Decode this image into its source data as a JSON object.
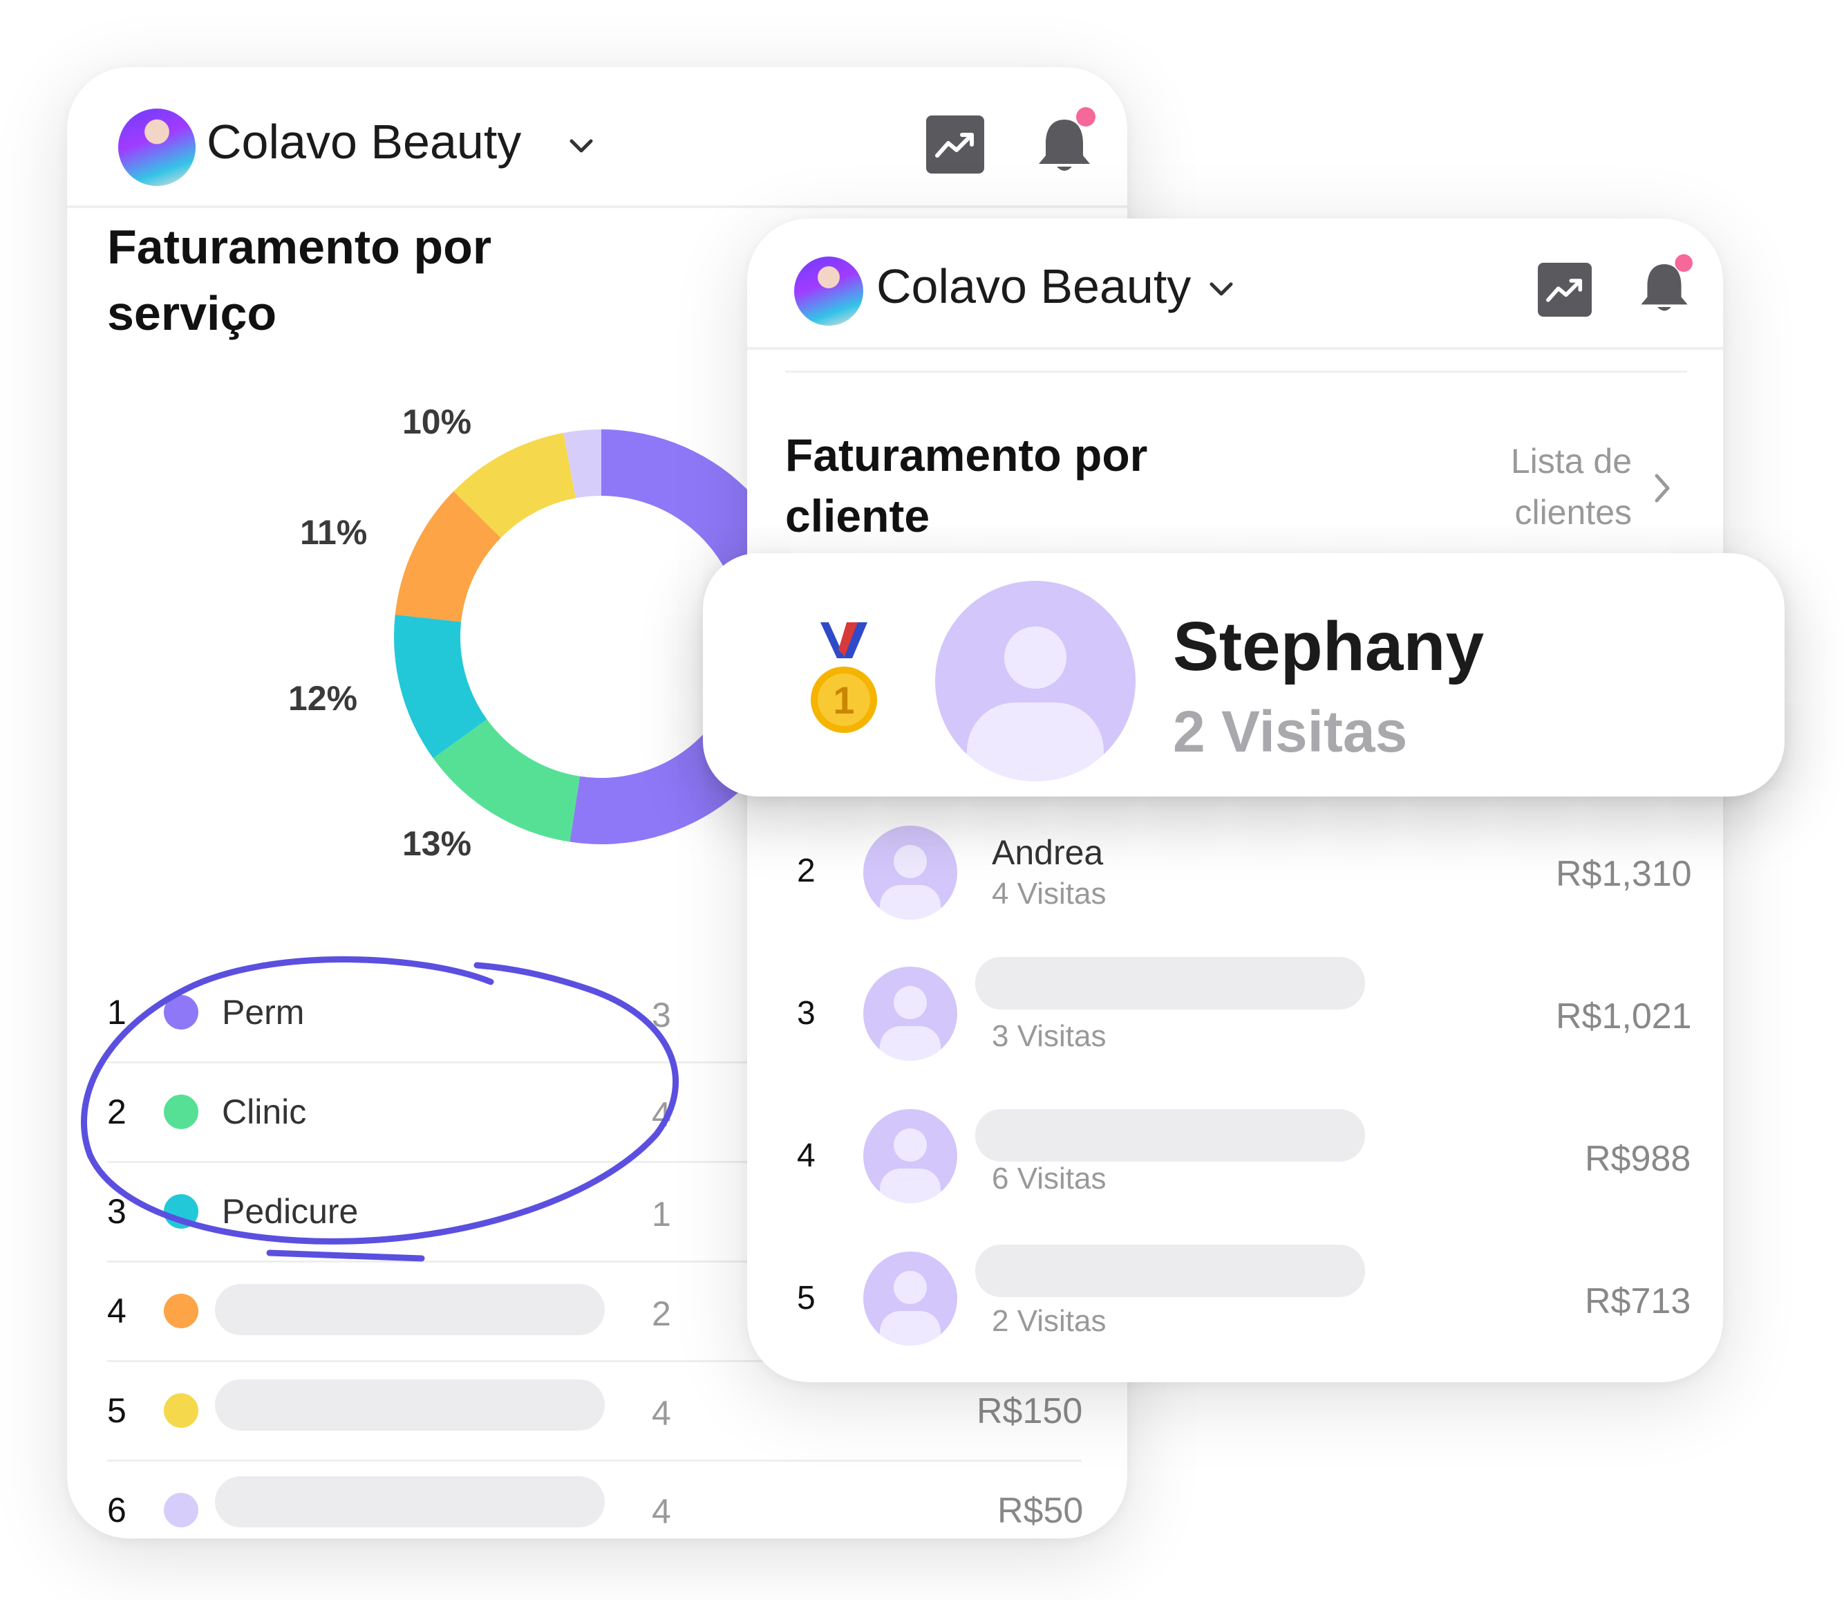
{
  "app": {
    "brand": "Colavo Beauty"
  },
  "left_card": {
    "title_line1": "Faturamento por",
    "title_line2": "serviço",
    "donut_labels": [
      "10%",
      "11%",
      "12%",
      "13%"
    ],
    "rows": [
      {
        "rank": "1",
        "name": "Perm",
        "count": "3",
        "price": "",
        "color": "#8f78f7"
      },
      {
        "rank": "2",
        "name": "Clinic",
        "count": "4",
        "price": "",
        "color": "#56e096"
      },
      {
        "rank": "3",
        "name": "Pedicure",
        "count": "1",
        "price": "",
        "color": "#23c8d8"
      },
      {
        "rank": "4",
        "name": "",
        "count": "2",
        "price": "",
        "color": "#fca446"
      },
      {
        "rank": "5",
        "name": "",
        "count": "4",
        "price": "R$150",
        "color": "#f6d84c"
      },
      {
        "rank": "6",
        "name": "",
        "count": "4",
        "price": "R$50",
        "color": "#d7cdfb"
      }
    ]
  },
  "right_card": {
    "title_line1": "Faturamento por",
    "title_line2": "cliente",
    "link_line1": "Lista de",
    "link_line2": "clientes",
    "top_client": {
      "name": "Stephany",
      "visits": "2 Visitas",
      "medal_number": "1"
    },
    "clients": [
      {
        "rank": "2",
        "name": "Andrea",
        "visits": "4 Visitas",
        "amount": "R$1,310"
      },
      {
        "rank": "3",
        "name": "",
        "visits": "3 Visitas",
        "amount": "R$1,021"
      },
      {
        "rank": "4",
        "name": "",
        "visits": "6 Visitas",
        "amount": "R$988"
      },
      {
        "rank": "5",
        "name": "",
        "visits": "2 Visitas",
        "amount": "R$713"
      }
    ]
  },
  "chart_data": {
    "type": "pie",
    "segments": [
      {
        "value": 54,
        "color": "#8f78f7"
      },
      {
        "value": 13,
        "color": "#56e096"
      },
      {
        "value": 12,
        "color": "#23c8d8"
      },
      {
        "value": 11,
        "color": "#fca446"
      },
      {
        "value": 10,
        "color": "#f6d84c"
      },
      {
        "value": 3,
        "color": "#d7cdfb"
      }
    ],
    "labels": [
      "13%",
      "12%",
      "11%",
      "10%"
    ]
  },
  "colors": {
    "accent": "#5b4fe0",
    "notification": "#f6679a",
    "placeholder": "#ececee"
  },
  "icons": [
    "trend-chart-icon",
    "bell-icon",
    "chevron-down-icon",
    "chevron-right-icon",
    "medal-icon",
    "user-avatar-icon"
  ]
}
